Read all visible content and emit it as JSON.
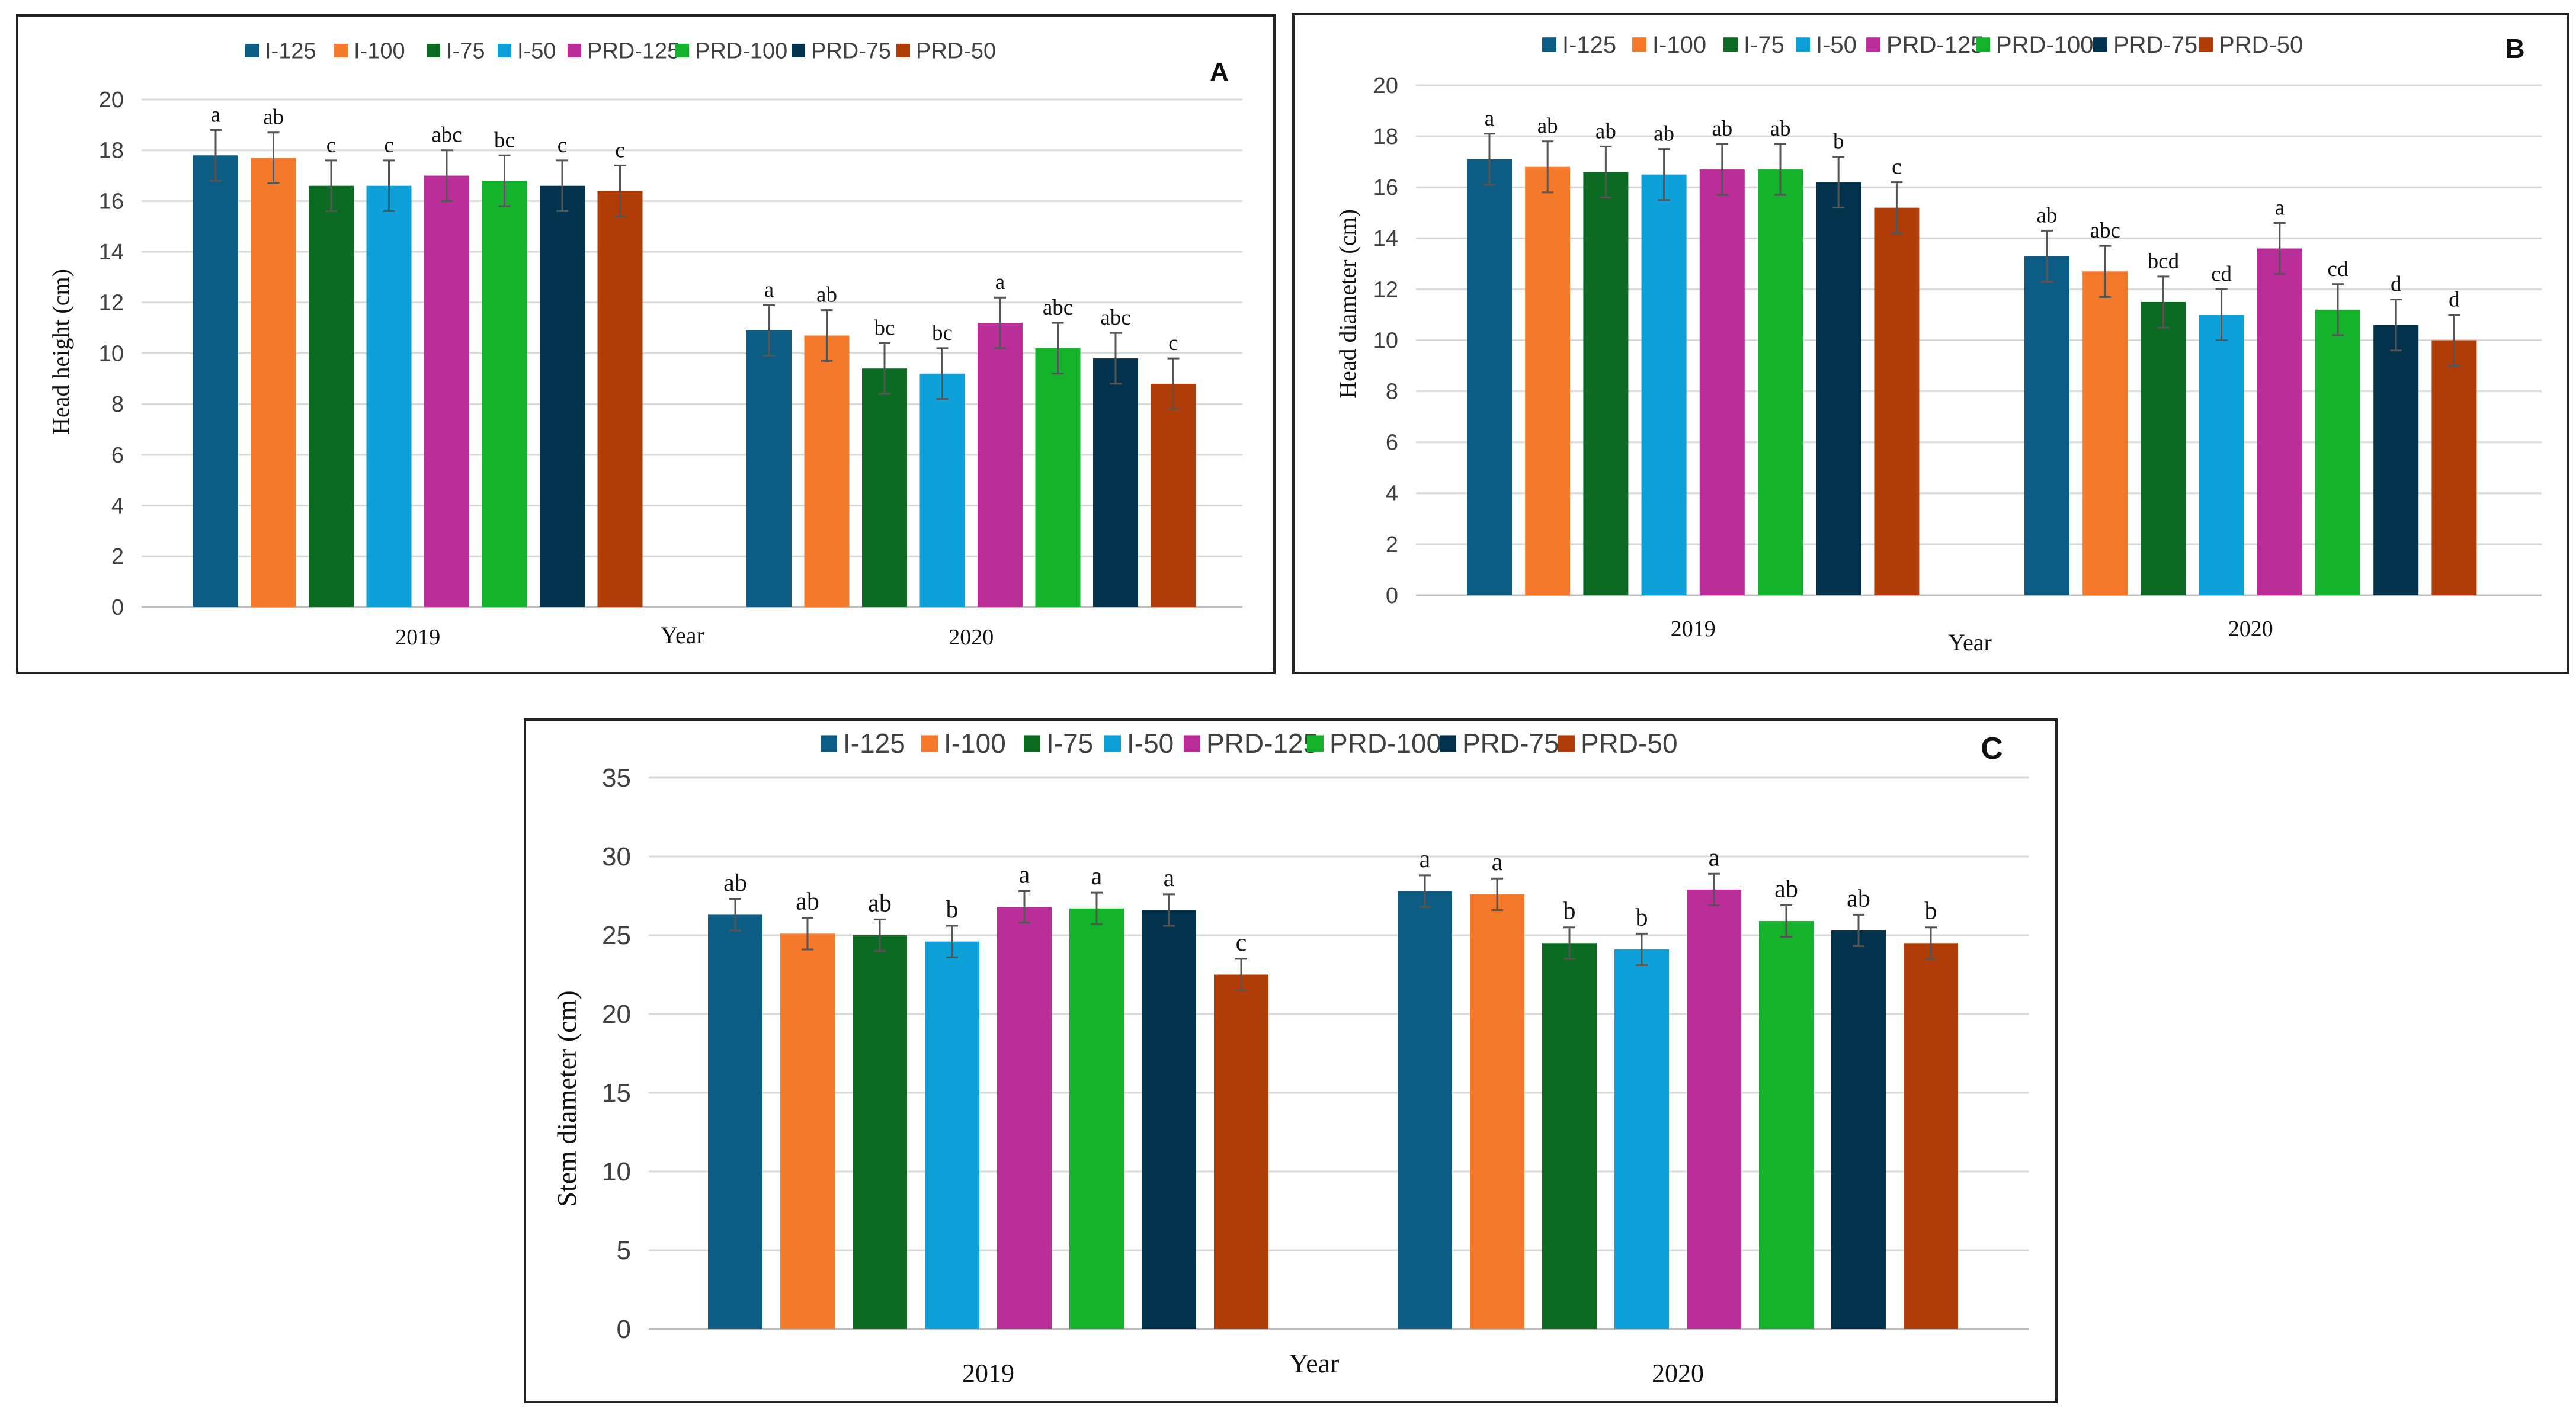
{
  "legend": [
    "I-125",
    "I-100",
    "I-75",
    "I-50",
    "PRD-125",
    "PRD-100",
    "PRD-75",
    "PRD-50"
  ],
  "colors": [
    "#0d5c84",
    "#f4792b",
    "#0c6a22",
    "#0ea0d9",
    "#bb2d98",
    "#15b22b",
    "#03324d",
    "#b03d08"
  ],
  "chart_data": [
    {
      "panel": "A",
      "type": "bar",
      "categories": [
        "2019",
        "2020"
      ],
      "xlabel": "Year",
      "ylabel": "Head height (cm)",
      "ylim": [
        0,
        20
      ],
      "ytick_step": 2,
      "yticks": [
        "0",
        "2",
        "4",
        "6",
        "8",
        "10",
        "12",
        "14",
        "16",
        "18",
        "20"
      ],
      "grid": true,
      "legend_position": "top",
      "series": [
        {
          "name": "I-125",
          "values": [
            17.8,
            10.9
          ],
          "errors": [
            1.0,
            1.0
          ],
          "letters": [
            "a",
            "a"
          ]
        },
        {
          "name": "I-100",
          "values": [
            17.7,
            10.7
          ],
          "errors": [
            1.0,
            1.0
          ],
          "letters": [
            "ab",
            "ab"
          ]
        },
        {
          "name": "I-75",
          "values": [
            16.6,
            9.4
          ],
          "errors": [
            1.0,
            1.0
          ],
          "letters": [
            "c",
            "bc"
          ]
        },
        {
          "name": "I-50",
          "values": [
            16.6,
            9.2
          ],
          "errors": [
            1.0,
            1.0
          ],
          "letters": [
            "c",
            "bc"
          ]
        },
        {
          "name": "PRD-125",
          "values": [
            17.0,
            11.2
          ],
          "errors": [
            1.0,
            1.0
          ],
          "letters": [
            "abc",
            "a"
          ]
        },
        {
          "name": "PRD-100",
          "values": [
            16.8,
            10.2
          ],
          "errors": [
            1.0,
            1.0
          ],
          "letters": [
            "bc",
            "abc"
          ]
        },
        {
          "name": "PRD-75",
          "values": [
            16.6,
            9.8
          ],
          "errors": [
            1.0,
            1.0
          ],
          "letters": [
            "c",
            "abc"
          ]
        },
        {
          "name": "PRD-50",
          "values": [
            16.4,
            8.8
          ],
          "errors": [
            1.0,
            1.0
          ],
          "letters": [
            "c",
            "c"
          ]
        }
      ]
    },
    {
      "panel": "B",
      "type": "bar",
      "categories": [
        "2019",
        "2020"
      ],
      "xlabel": "Year",
      "ylabel": "Head diameter (cm)",
      "ylim": [
        0,
        20
      ],
      "ytick_step": 2,
      "yticks": [
        "0",
        "2",
        "4",
        "6",
        "8",
        "10",
        "12",
        "14",
        "16",
        "18",
        "20"
      ],
      "grid": true,
      "legend_position": "top",
      "series": [
        {
          "name": "I-125",
          "values": [
            17.1,
            13.3
          ],
          "errors": [
            1.0,
            1.0
          ],
          "letters": [
            "a",
            "ab"
          ]
        },
        {
          "name": "I-100",
          "values": [
            16.8,
            12.7
          ],
          "errors": [
            1.0,
            1.0
          ],
          "letters": [
            "ab",
            "abc"
          ]
        },
        {
          "name": "I-75",
          "values": [
            16.6,
            11.5
          ],
          "errors": [
            1.0,
            1.0
          ],
          "letters": [
            "ab",
            "bcd"
          ]
        },
        {
          "name": "I-50",
          "values": [
            16.5,
            11.0
          ],
          "errors": [
            1.0,
            1.0
          ],
          "letters": [
            "ab",
            "cd"
          ]
        },
        {
          "name": "PRD-125",
          "values": [
            16.7,
            13.6
          ],
          "errors": [
            1.0,
            1.0
          ],
          "letters": [
            "ab",
            "a"
          ]
        },
        {
          "name": "PRD-100",
          "values": [
            16.7,
            11.2
          ],
          "errors": [
            1.0,
            1.0
          ],
          "letters": [
            "ab",
            "cd"
          ]
        },
        {
          "name": "PRD-75",
          "values": [
            16.2,
            10.6
          ],
          "errors": [
            1.0,
            1.0
          ],
          "letters": [
            "b",
            "d"
          ]
        },
        {
          "name": "PRD-50",
          "values": [
            15.2,
            10.0
          ],
          "errors": [
            1.0,
            1.0
          ],
          "letters": [
            "c",
            "d"
          ]
        }
      ]
    },
    {
      "panel": "C",
      "type": "bar",
      "categories": [
        "2019",
        "2020"
      ],
      "xlabel": "Year",
      "ylabel": "Stem diameter (cm)",
      "ylim": [
        0,
        35
      ],
      "ytick_step": 5,
      "yticks": [
        "0",
        "5",
        "10",
        "15",
        "20",
        "25",
        "30",
        "35"
      ],
      "grid": true,
      "legend_position": "top",
      "series": [
        {
          "name": "I-125",
          "values": [
            26.3,
            27.8
          ],
          "errors": [
            1.0,
            1.0
          ],
          "letters": [
            "ab",
            "a"
          ]
        },
        {
          "name": "I-100",
          "values": [
            25.1,
            27.6
          ],
          "errors": [
            1.0,
            1.0
          ],
          "letters": [
            "ab",
            "a"
          ]
        },
        {
          "name": "I-75",
          "values": [
            25.0,
            24.5
          ],
          "errors": [
            1.0,
            1.0
          ],
          "letters": [
            "ab",
            "b"
          ]
        },
        {
          "name": "I-50",
          "values": [
            24.6,
            24.1
          ],
          "errors": [
            1.0,
            1.0
          ],
          "letters": [
            "b",
            "b"
          ]
        },
        {
          "name": "PRD-125",
          "values": [
            26.8,
            27.9
          ],
          "errors": [
            1.0,
            1.0
          ],
          "letters": [
            "a",
            "a"
          ]
        },
        {
          "name": "PRD-100",
          "values": [
            26.7,
            25.9
          ],
          "errors": [
            1.0,
            1.0
          ],
          "letters": [
            "a",
            "ab"
          ]
        },
        {
          "name": "PRD-75",
          "values": [
            26.6,
            25.3
          ],
          "errors": [
            1.0,
            1.0
          ],
          "letters": [
            "a",
            "ab"
          ]
        },
        {
          "name": "PRD-50",
          "values": [
            22.5,
            24.5
          ],
          "errors": [
            1.0,
            1.0
          ],
          "letters": [
            "c",
            "b"
          ]
        }
      ]
    }
  ]
}
